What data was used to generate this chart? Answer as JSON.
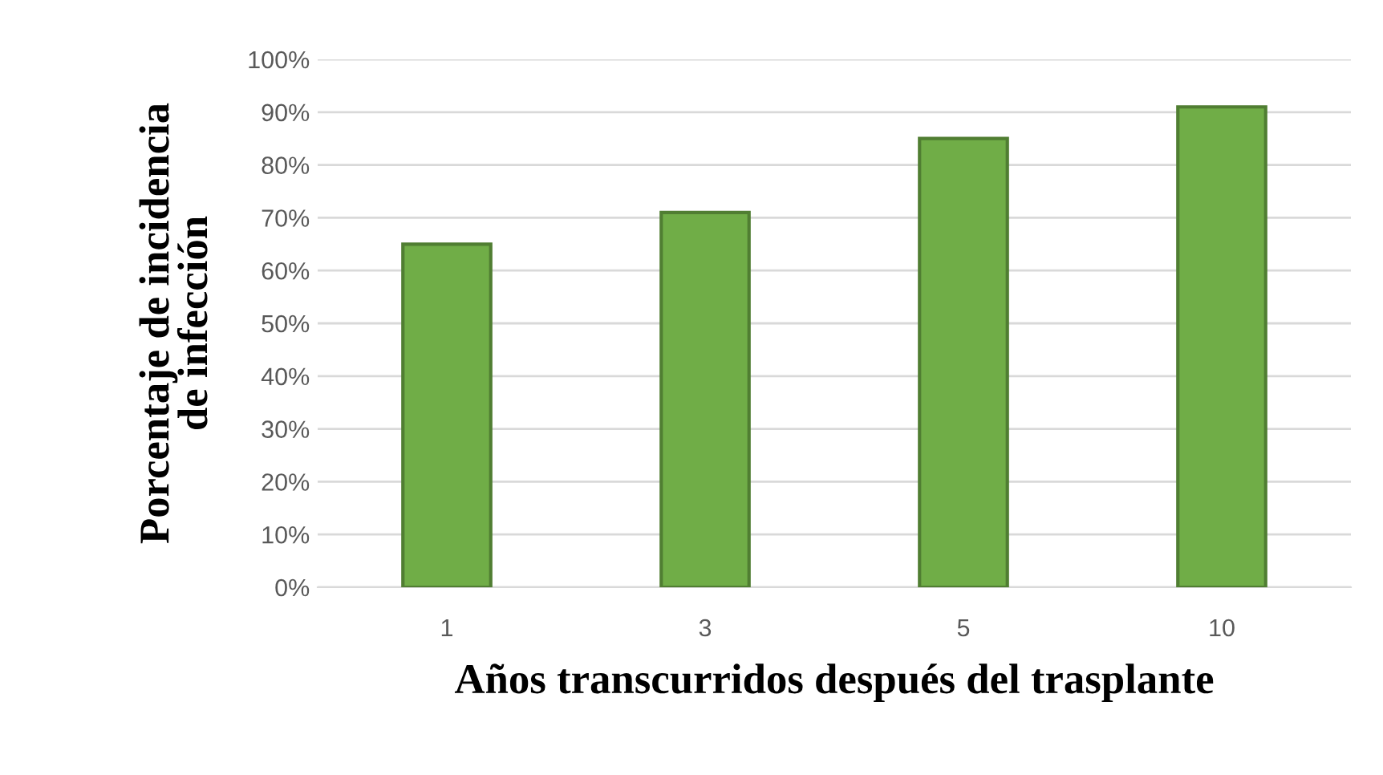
{
  "chart_data": {
    "type": "bar",
    "xlabel": "Años transcurridos después del trasplante",
    "ylabel": "Porcentaje de incidencia\nde infección",
    "categories": [
      "1",
      "3",
      "5",
      "10"
    ],
    "values": [
      65,
      71,
      85,
      91
    ],
    "color": "#70ad47",
    "ylim": [
      0,
      100
    ],
    "yticks": [
      {
        "value": 0,
        "label": "0%"
      },
      {
        "value": 10,
        "label": "10%"
      },
      {
        "value": 20,
        "label": "20%"
      },
      {
        "value": 30,
        "label": "30%"
      },
      {
        "value": 40,
        "label": "40%"
      },
      {
        "value": 50,
        "label": "50%"
      },
      {
        "value": 60,
        "label": "60%"
      },
      {
        "value": 70,
        "label": "70%"
      },
      {
        "value": 80,
        "label": "80%"
      },
      {
        "value": 90,
        "label": "90%"
      },
      {
        "value": 100,
        "label": "100%"
      }
    ],
    "grid": "y",
    "legend": false
  }
}
